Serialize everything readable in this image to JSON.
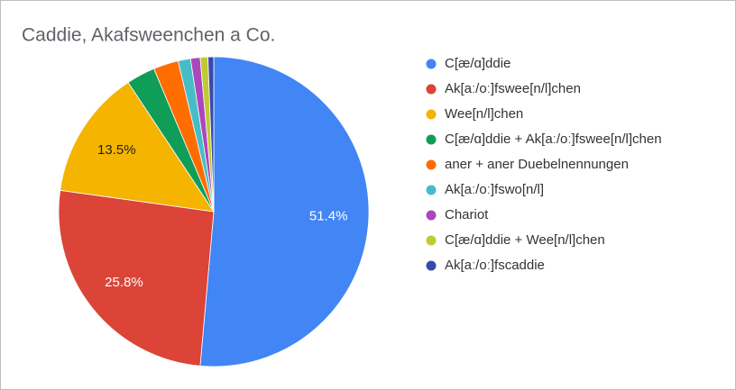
{
  "chart_data": {
    "type": "pie",
    "title": "Caddie, Akafsweenchen a Co.",
    "categories": [
      "C[æ/ɑ]ddie",
      "Ak[aː/oː]fswee[n/l]chen",
      "Wee[n/l]chen",
      "C[æ/ɑ]ddie + Ak[aː/oː]fswee[n/l]chen",
      "aner + aner Duebelnennungen",
      "Ak[aː/oː]fswo[n/l]",
      "Chariot",
      "C[æ/ɑ]ddie + Wee[n/l]chen",
      "Ak[aː/oː]fscaddie"
    ],
    "values": [
      51.4,
      25.8,
      13.5,
      3.0,
      2.6,
      1.3,
      1.0,
      0.8,
      0.6
    ],
    "value_labels": [
      "51.4%",
      "25.8%",
      "13.5%",
      null,
      null,
      null,
      null,
      null,
      null
    ],
    "colors": [
      "#4285f4",
      "#db4437",
      "#f4b400",
      "#0f9d58",
      "#ff6d01",
      "#46bdc6",
      "#ab47bc",
      "#c0ca33",
      "#3949ab"
    ],
    "legend": "right"
  }
}
